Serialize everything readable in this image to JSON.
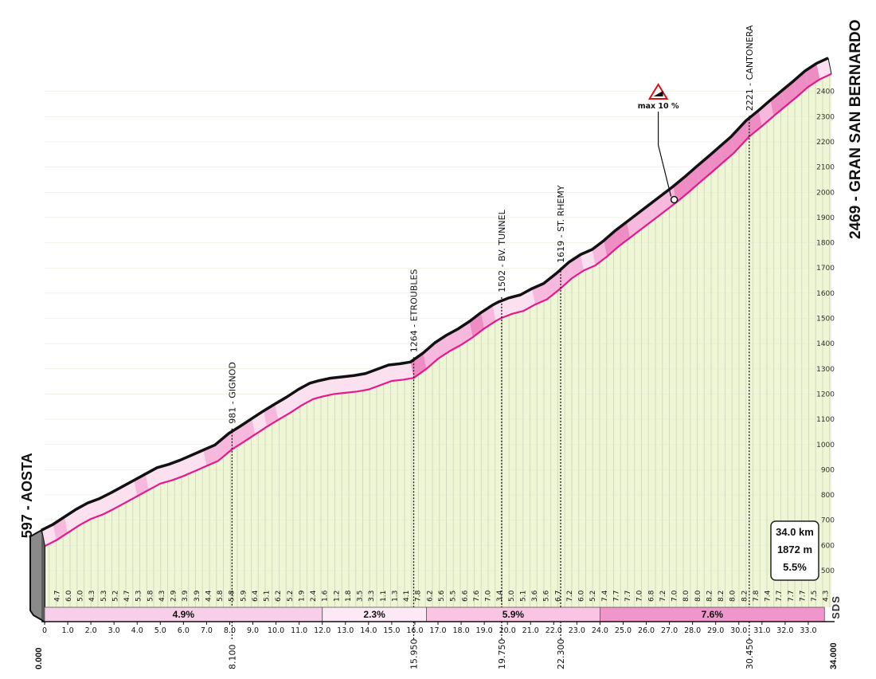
{
  "chart_data": {
    "type": "area",
    "x_unit": "km",
    "y_unit": "m",
    "start": {
      "km": 0,
      "elevation": 597,
      "name": "AOSTA",
      "label": "597 - AOSTA",
      "km_label": "0.000"
    },
    "finish": {
      "km": 34,
      "elevation": 2469,
      "name": "GRAN SAN BERNARDO",
      "label": "2469 - GRAN SAN BERNARDO",
      "km_label": "34.000"
    },
    "ylim": [
      400,
      2480
    ],
    "xlim": [
      0,
      34
    ],
    "y_ticks": [
      "500",
      "600",
      "700",
      "800",
      "900",
      "1000",
      "1100",
      "1200",
      "1300",
      "1400",
      "1500",
      "1600",
      "1700",
      "1800",
      "1900",
      "2000",
      "2100",
      "2200",
      "2300",
      "2400"
    ],
    "x_ticks": [
      "0",
      "1.0",
      "2.0",
      "3.0",
      "4.0",
      "5.0",
      "6.0",
      "7.0",
      "8.0",
      "9.0",
      "10.0",
      "11.0",
      "12.0",
      "13.0",
      "14.0",
      "15.0",
      "16.0",
      "17.0",
      "18.0",
      "19.0",
      "20.0",
      "21.0",
      "22.0",
      "23.0",
      "24.0",
      "25.0",
      "26.0",
      "27.0",
      "28.0",
      "29.0",
      "30.0",
      "31.0",
      "32.0",
      "33.0"
    ],
    "km_gradients": [
      "4.7",
      "6.0",
      "5.0",
      "4.3",
      "5.3",
      "5.2",
      "4.7",
      "5.3",
      "5.8",
      "4.3",
      "2.9",
      "3.9",
      "3.9",
      "4.4",
      "5.8",
      "5.8",
      "5.9",
      "6.4",
      "5.1",
      "6.2",
      "5.2",
      "1.9",
      "2.4",
      "1.6",
      "1.2",
      "1.8",
      "3.5",
      "3.3",
      "1.1",
      "1.3",
      "4.1",
      "7.8",
      "6.2",
      "5.6",
      "5.5",
      "6.6",
      "7.6",
      "7.0",
      "3.4",
      "5.0",
      "5.1",
      "3.6",
      "5.6",
      "6.7",
      "7.2",
      "6.0",
      "5.2",
      "7.4",
      "7.7",
      "7.7",
      "7.0",
      "6.8",
      "7.2",
      "7.0",
      "8.0",
      "8.0",
      "8.2",
      "8.2",
      "8.0",
      "8.2",
      "7.8",
      "7.4",
      "7.7",
      "7.7",
      "7.7",
      "7.5",
      "4.3"
    ],
    "elevation_profile": [
      [
        0,
        597
      ],
      [
        0.5,
        620
      ],
      [
        1,
        650
      ],
      [
        1.5,
        680
      ],
      [
        2,
        705
      ],
      [
        2.5,
        722
      ],
      [
        3,
        745
      ],
      [
        3.5,
        770
      ],
      [
        4,
        795
      ],
      [
        4.5,
        820
      ],
      [
        5,
        845
      ],
      [
        5.5,
        858
      ],
      [
        6,
        875
      ],
      [
        6.5,
        895
      ],
      [
        7,
        915
      ],
      [
        7.5,
        935
      ],
      [
        8.1,
        981
      ],
      [
        8.6,
        1010
      ],
      [
        9.1,
        1040
      ],
      [
        9.6,
        1070
      ],
      [
        10.1,
        1098
      ],
      [
        10.6,
        1125
      ],
      [
        11.1,
        1155
      ],
      [
        11.6,
        1180
      ],
      [
        12,
        1190
      ],
      [
        12.5,
        1200
      ],
      [
        13,
        1205
      ],
      [
        13.5,
        1210
      ],
      [
        14,
        1218
      ],
      [
        14.5,
        1235
      ],
      [
        15,
        1252
      ],
      [
        15.5,
        1257
      ],
      [
        15.95,
        1264
      ],
      [
        16.5,
        1300
      ],
      [
        17,
        1340
      ],
      [
        17.5,
        1370
      ],
      [
        18,
        1395
      ],
      [
        18.5,
        1425
      ],
      [
        19,
        1460
      ],
      [
        19.5,
        1490
      ],
      [
        19.75,
        1502
      ],
      [
        20.2,
        1518
      ],
      [
        20.7,
        1530
      ],
      [
        21.2,
        1555
      ],
      [
        21.7,
        1575
      ],
      [
        22.3,
        1619
      ],
      [
        22.8,
        1660
      ],
      [
        23.3,
        1690
      ],
      [
        23.8,
        1710
      ],
      [
        24.3,
        1745
      ],
      [
        24.8,
        1785
      ],
      [
        25.3,
        1820
      ],
      [
        25.8,
        1855
      ],
      [
        26.3,
        1890
      ],
      [
        26.8,
        1925
      ],
      [
        27.3,
        1960
      ],
      [
        27.8,
        1998
      ],
      [
        28.3,
        2038
      ],
      [
        28.8,
        2077
      ],
      [
        29.3,
        2117
      ],
      [
        29.8,
        2157
      ],
      [
        30.45,
        2221
      ],
      [
        31,
        2262
      ],
      [
        31.5,
        2302
      ],
      [
        32,
        2340
      ],
      [
        32.5,
        2378
      ],
      [
        33,
        2418
      ],
      [
        33.5,
        2448
      ],
      [
        34,
        2469
      ]
    ],
    "waypoints": [
      {
        "km": 8.1,
        "elevation": 981,
        "label": "981 - GIGNOD",
        "km_label": "8.100"
      },
      {
        "km": 15.95,
        "elevation": 1264,
        "label": "1264 - ETROUBLES",
        "km_label": "15.950"
      },
      {
        "km": 19.75,
        "elevation": 1502,
        "label": "1502 - BV. TUNNEL",
        "km_label": "19.750"
      },
      {
        "km": 22.3,
        "elevation": 1619,
        "label": "1619 - ST. RHEMY",
        "km_label": "22.300"
      },
      {
        "km": 30.45,
        "elevation": 2221,
        "label": "2221 - CANTONERA",
        "km_label": "30.450"
      }
    ],
    "max_gradient": {
      "km": 27.0,
      "label": "max 10 %"
    },
    "gradient_bands": [
      {
        "from": 0,
        "to": 12,
        "label": "4.9%",
        "color": "#f7cfe8"
      },
      {
        "from": 12,
        "to": 16.5,
        "label": "2.3%",
        "color": "#fde9f5"
      },
      {
        "from": 16.5,
        "to": 24,
        "label": "5.9%",
        "color": "#f9c5e3"
      },
      {
        "from": 24,
        "to": 33.7,
        "label": "7.6%",
        "color": "#ef97cb"
      }
    ],
    "summary": {
      "distance": "34.0 km",
      "elevation_gain": "1872 m",
      "avg_gradient": "5.5%"
    },
    "logo": "SDS",
    "colors": {
      "area_fill": "#eef6d6",
      "ribbon_light": "#fbe0ef",
      "ribbon_mid": "#f6b8dc",
      "ribbon_dark": "#ee8cc4",
      "profile_line": "#e6198c",
      "outline": "#111111"
    }
  }
}
